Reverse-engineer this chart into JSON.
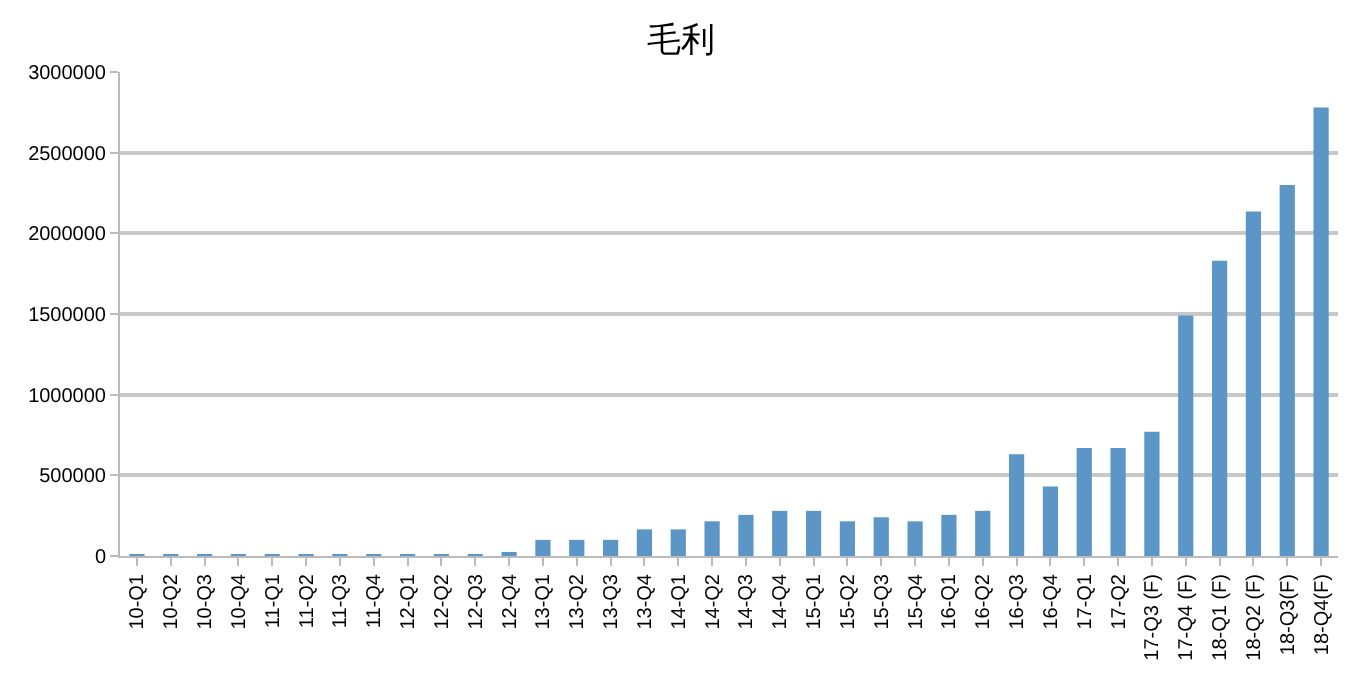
{
  "chart_data": {
    "type": "bar",
    "title": "毛利",
    "categories": [
      "10-Q1",
      "10-Q2",
      "10-Q3",
      "10-Q4",
      "11-Q1",
      "11-Q2",
      "11-Q3",
      "11-Q4",
      "12-Q1",
      "12-Q2",
      "12-Q3",
      "12-Q4",
      "13-Q1",
      "13-Q2",
      "13-Q3",
      "13-Q4",
      "14-Q1",
      "14-Q2",
      "14-Q3",
      "14-Q4",
      "15-Q1",
      "15-Q2",
      "15-Q3",
      "15-Q4",
      "16-Q1",
      "16-Q2",
      "16-Q3",
      "16-Q4",
      "17-Q1",
      "17-Q2",
      "17-Q3 (F)",
      "17-Q4 (F)",
      "18-Q1 (F)",
      "18-Q2 (F)",
      "18-Q3(F)",
      "18-Q4(F)"
    ],
    "values": [
      5000,
      5000,
      5000,
      5000,
      5000,
      5000,
      5000,
      5000,
      5000,
      5000,
      5000,
      25000,
      100000,
      100000,
      100000,
      165000,
      165000,
      215000,
      255000,
      280000,
      280000,
      215000,
      240000,
      215000,
      255000,
      280000,
      630000,
      430000,
      670000,
      670000,
      770000,
      1490000,
      1830000,
      2135000,
      2300000,
      2780000
    ],
    "color": "#5b96c6",
    "ylim": [
      0,
      3000000
    ],
    "yticks": [
      0,
      500000,
      1000000,
      1500000,
      2000000,
      2500000,
      3000000
    ],
    "grid": "y"
  }
}
